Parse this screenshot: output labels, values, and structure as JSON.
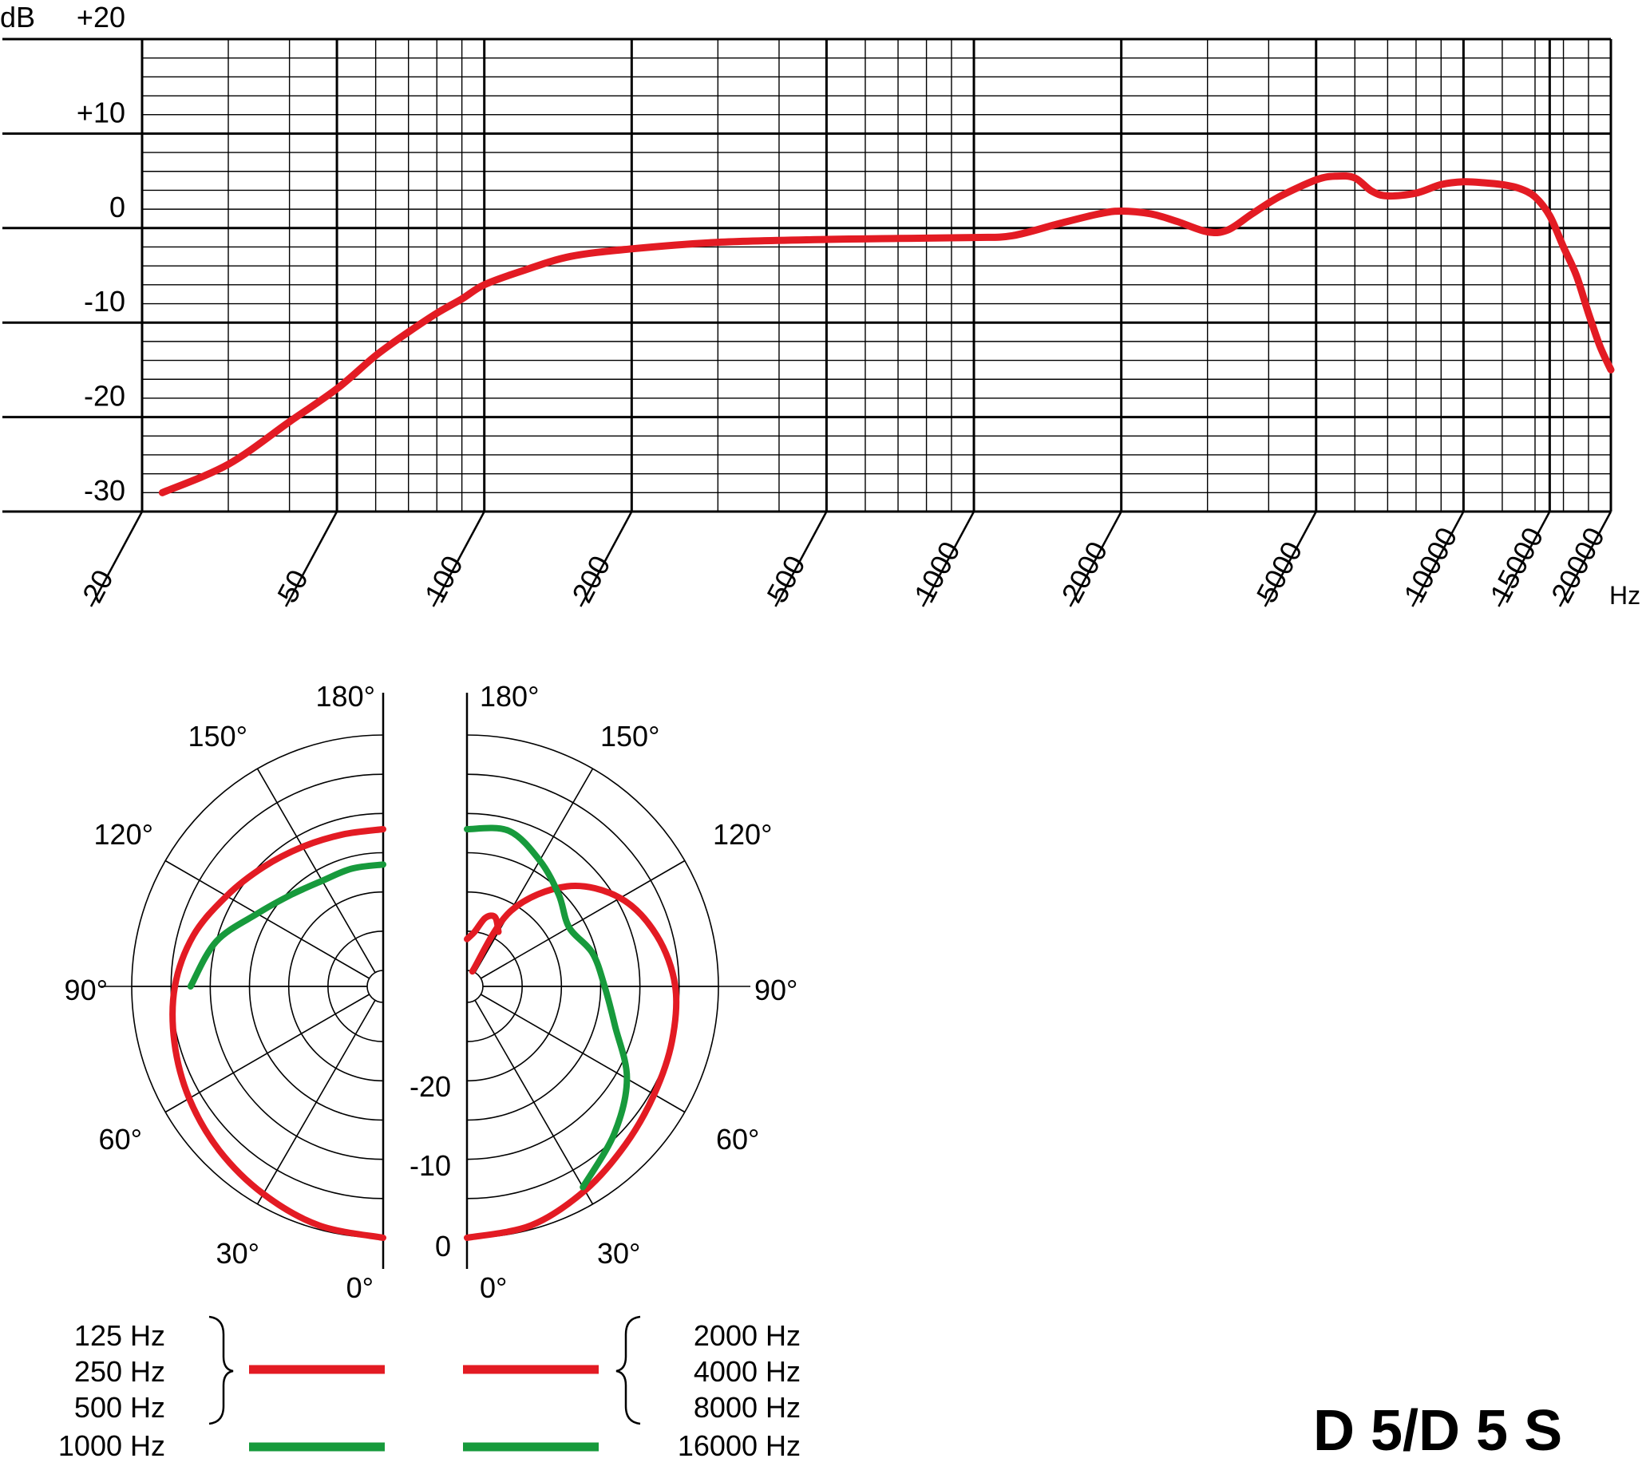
{
  "title": "D 5/D 5 S",
  "colors": {
    "red": "#e31b23",
    "green": "#179a3c",
    "grid": "#000000"
  },
  "frequency_response": {
    "y_unit": "dB",
    "x_unit": "Hz",
    "y_tick_labels": [
      "+20",
      "+10",
      "0",
      "-10",
      "-20",
      "-30"
    ],
    "x_tick_labels": [
      "20",
      "50",
      "100",
      "200",
      "500",
      "1000",
      "2000",
      "5000",
      "10000",
      "15000",
      "20000"
    ]
  },
  "polar": {
    "left_angle_labels": [
      "180°",
      "150°",
      "120°",
      "90°",
      "60°",
      "30°",
      "0°"
    ],
    "right_angle_labels": [
      "180°",
      "150°",
      "120°",
      "90°",
      "60°",
      "30°",
      "0°"
    ],
    "db_labels": [
      "-20",
      "-10",
      "0"
    ]
  },
  "legend": {
    "left_red": [
      "125 Hz",
      "250 Hz",
      "500 Hz"
    ],
    "left_green": "1000 Hz",
    "right_red": [
      "2000 Hz",
      "4000 Hz",
      "8000 Hz"
    ],
    "right_green": "16000 Hz"
  },
  "chart_data": [
    {
      "type": "line",
      "x_scale": "log",
      "xlim": [
        20,
        20000
      ],
      "ylim": [
        -30,
        20
      ],
      "xlabel": "Hz",
      "ylabel": "dB",
      "grid": true,
      "series": [
        {
          "color": "#e31b23",
          "x": [
            22,
            30,
            40,
            50,
            60,
            70,
            80,
            90,
            100,
            120,
            150,
            200,
            300,
            500,
            700,
            1000,
            1200,
            1500,
            1800,
            2000,
            2300,
            2600,
            3000,
            3300,
            3700,
            4200,
            5000,
            5500,
            6000,
            6500,
            7000,
            8000,
            9000,
            10000,
            11000,
            12000,
            13000,
            14000,
            15000,
            16000,
            17000,
            18000,
            19000,
            20000
          ],
          "y": [
            -28,
            -25,
            -20.5,
            -17,
            -13.5,
            -11,
            -9,
            -7.5,
            -6,
            -4.5,
            -3,
            -2.2,
            -1.5,
            -1.2,
            -1.1,
            -1,
            -0.8,
            0.5,
            1.5,
            1.8,
            1.5,
            0.7,
            -0.4,
            -0.2,
            1.5,
            3.3,
            5.1,
            5.5,
            5.3,
            3.9,
            3.4,
            3.7,
            4.6,
            4.9,
            4.8,
            4.6,
            4.2,
            3.3,
            1.3,
            -2,
            -5,
            -9,
            -12.5,
            -15
          ]
        }
      ]
    },
    {
      "type": "polar",
      "angle_unit": "deg",
      "r_ticks_db": [
        -20,
        -10,
        0
      ],
      "series": [
        {
          "color": "#e31b23",
          "side": "left",
          "angle": [
            0,
            15,
            30,
            45,
            60,
            75,
            90,
            105,
            120,
            135,
            150,
            165,
            180
          ],
          "level_db": [
            0,
            -0.5,
            -1.5,
            -2.5,
            -3.5,
            -4.5,
            -5.5,
            -7,
            -9,
            -10.5,
            -11.5,
            -12,
            -12
          ]
        },
        {
          "color": "#179a3c",
          "side": "left",
          "angle": [
            90,
            105,
            120,
            135,
            150,
            165,
            180
          ],
          "level_db": [
            -7.5,
            -10,
            -13.5,
            -15.5,
            -16.5,
            -16.5,
            -16.5
          ]
        },
        {
          "color": "#e31b23",
          "side": "right",
          "angle": [
            0,
            15,
            30,
            45,
            60,
            75,
            90,
            105,
            120,
            135,
            150,
            160
          ],
          "level_db": [
            0,
            -0.5,
            -2,
            -3.5,
            -4.5,
            -5,
            -5.5,
            -7,
            -9.5,
            -14,
            -21,
            -30
          ]
        },
        {
          "color": "#e31b23",
          "side": "right",
          "angle": [
            150,
            158,
            165,
            172,
            180
          ],
          "level_db": [
            -24,
            -22.5,
            -23,
            -25,
            -26
          ]
        },
        {
          "color": "#179a3c",
          "side": "right",
          "angle": [
            30,
            45,
            60,
            75,
            90,
            105,
            120,
            135,
            150,
            165,
            180
          ],
          "level_db": [
            -2.5,
            -5.5,
            -8.5,
            -12.5,
            -14.5,
            -15.5,
            -17,
            -15.5,
            -13.5,
            -11.5,
            -12
          ]
        }
      ]
    }
  ]
}
